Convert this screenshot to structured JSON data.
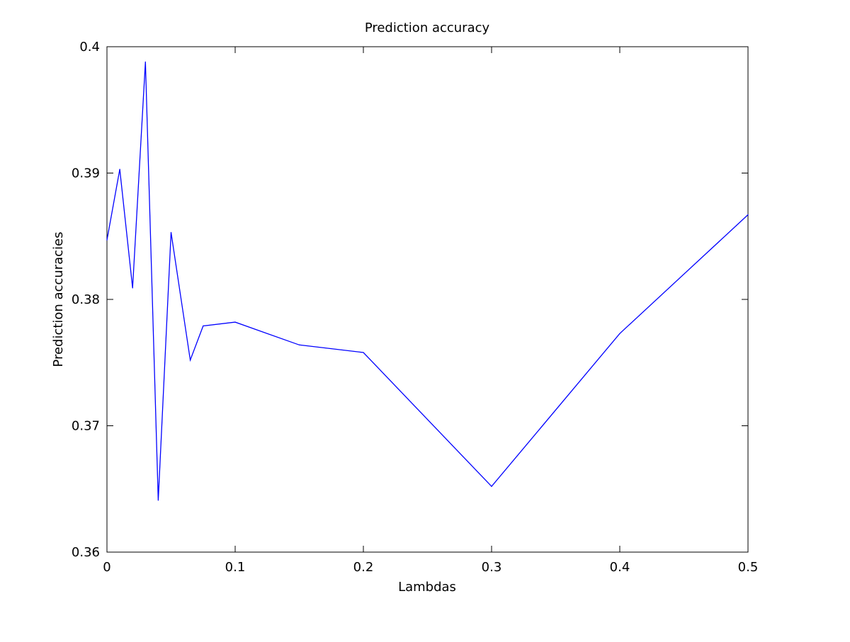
{
  "chart_data": {
    "type": "line",
    "title": "Prediction accuracy",
    "xlabel": "Lambdas",
    "ylabel": "Prediction accuracies",
    "xlim": [
      0,
      0.5
    ],
    "ylim": [
      0.36,
      0.4
    ],
    "xticks": [
      0,
      0.1,
      0.2,
      0.3,
      0.4,
      0.5
    ],
    "xtick_labels": [
      "0",
      "0.1",
      "0.2",
      "0.3",
      "0.4",
      "0.5"
    ],
    "yticks": [
      0.36,
      0.37,
      0.38,
      0.39,
      0.4
    ],
    "ytick_labels": [
      "0.36",
      "0.37",
      "0.38",
      "0.39",
      "0.4"
    ],
    "grid": false,
    "series": [
      {
        "color": "#0000ff",
        "x": [
          0,
          0.01,
          0.02,
          0.03,
          0.04,
          0.05,
          0.065,
          0.075,
          0.1,
          0.15,
          0.2,
          0.3,
          0.4,
          0.5
        ],
        "y": [
          0.3847,
          0.3903,
          0.3809,
          0.3988,
          0.3641,
          0.3853,
          0.3752,
          0.3779,
          0.3782,
          0.3764,
          0.3758,
          0.3652,
          0.3773,
          0.3867
        ]
      }
    ]
  }
}
